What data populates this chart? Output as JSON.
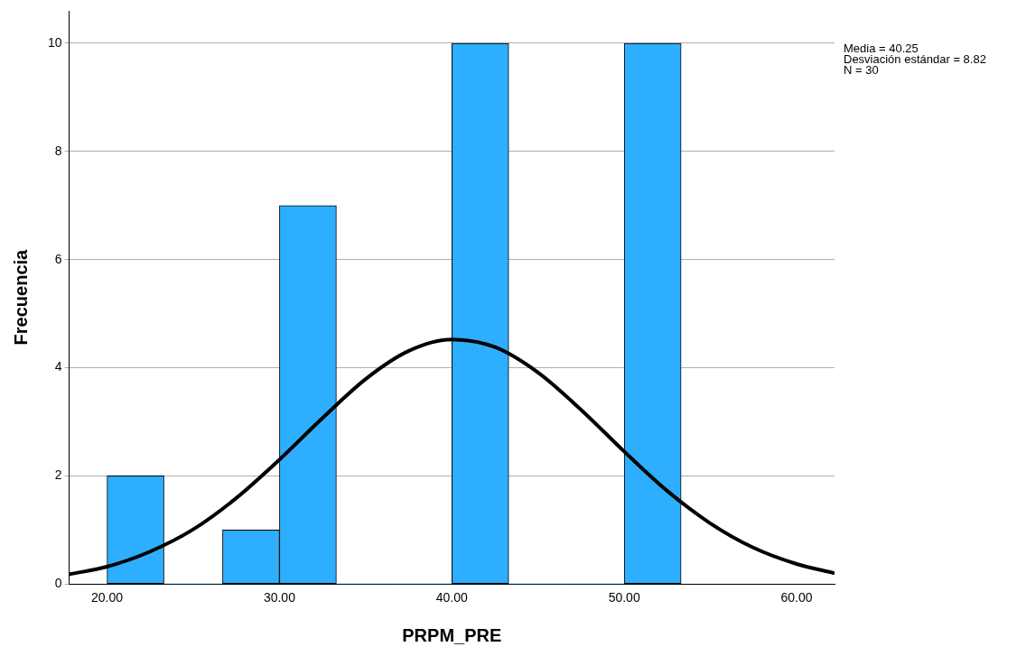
{
  "chart_data": {
    "type": "histogram",
    "xlabel": "PRPM_PRE",
    "ylabel": "Frecuencia",
    "bins": [
      20,
      23.3,
      26.7,
      30,
      33.3,
      36.7,
      40,
      43.3,
      46.7,
      50,
      53.3
    ],
    "values": [
      2,
      0,
      1,
      7,
      0,
      0,
      10,
      0,
      0,
      10
    ],
    "color": "#2eaefe",
    "series": [
      {
        "type": "line",
        "color": "#000000",
        "x": [
          17.8,
          20,
          22.5,
          25,
          27.5,
          30,
          32.5,
          35,
          37.5,
          40,
          42.5,
          45,
          47.5,
          50,
          52.5,
          55,
          57.5,
          60,
          62.2
        ],
        "values": [
          0.18,
          0.32,
          0.6,
          1.01,
          1.59,
          2.3,
          3.07,
          3.79,
          4.31,
          4.52,
          4.38,
          3.91,
          3.22,
          2.45,
          1.72,
          1.12,
          0.67,
          0.37,
          0.2
        ]
      }
    ],
    "xlim": [
      17.8,
      62.2
    ],
    "xticks": [
      {
        "value": 20,
        "label": "20.00"
      },
      {
        "value": 30,
        "label": "30.00"
      },
      {
        "value": 40,
        "label": "40.00"
      },
      {
        "value": 50,
        "label": "50.00"
      },
      {
        "value": 60,
        "label": "60.00"
      }
    ],
    "ylim": [
      0,
      10.6
    ],
    "yticks": [
      0,
      2,
      4,
      6,
      8,
      10
    ],
    "grid": "y",
    "legend": false,
    "marker": "none",
    "line_style": "solid",
    "annotations": [
      "Media = 40.25",
      "Desviación estándar = 8.82",
      "N = 30"
    ]
  }
}
